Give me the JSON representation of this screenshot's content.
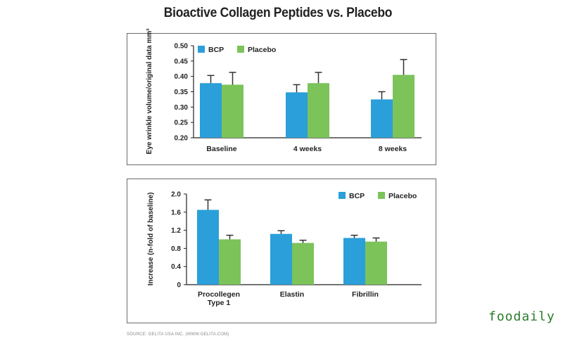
{
  "title": "Bioactive Collagen Peptides vs. Placebo",
  "source": "SOURCE: GELITA USA INC. (WWW.GELITA.COM)",
  "watermark": "foodaily",
  "colors": {
    "bcp": "#2b9fd9",
    "placebo": "#7cc35a",
    "error": "#333333",
    "axis": "#222222"
  },
  "chart_data": [
    {
      "type": "bar",
      "ylabel": "Eye wrinkle volume/original data mm³",
      "xlabel": "",
      "categories": [
        "Baseline",
        "4 weeks",
        "8 weeks"
      ],
      "ylim": [
        0.2,
        0.5
      ],
      "yticks": [
        0.2,
        0.25,
        0.3,
        0.35,
        0.4,
        0.45,
        0.5
      ],
      "ytick_labels": [
        "0.20",
        "0.25",
        "0.30",
        "0.35",
        "0.40",
        "0.45",
        "0.50"
      ],
      "series": [
        {
          "name": "BCP",
          "values": [
            0.378,
            0.348,
            0.325
          ],
          "errors": [
            0.025,
            0.025,
            0.025
          ]
        },
        {
          "name": "Placebo",
          "values": [
            0.373,
            0.378,
            0.405
          ],
          "errors": [
            0.04,
            0.035,
            0.05
          ]
        }
      ],
      "legend": "top-left"
    },
    {
      "type": "bar",
      "ylabel": "Increase (n-fold of baseline)",
      "xlabel": "",
      "categories": [
        "Procollegen Type 1",
        "Elastin",
        "Fibrillin"
      ],
      "category_lines": [
        [
          "Procollegen",
          "Type 1"
        ],
        [
          "Elastin"
        ],
        [
          "Fibrillin"
        ]
      ],
      "ylim": [
        0,
        2.0
      ],
      "yticks": [
        0,
        0.4,
        0.8,
        1.2,
        1.6,
        2.0
      ],
      "ytick_labels": [
        "0",
        "0.4",
        "0.8",
        "1.2",
        "1.6",
        "2.0"
      ],
      "series": [
        {
          "name": "BCP",
          "values": [
            1.65,
            1.12,
            1.03
          ],
          "errors": [
            0.22,
            0.07,
            0.06
          ]
        },
        {
          "name": "Placebo",
          "values": [
            1.0,
            0.92,
            0.95
          ],
          "errors": [
            0.09,
            0.06,
            0.08
          ]
        }
      ],
      "legend": "top-right"
    }
  ]
}
